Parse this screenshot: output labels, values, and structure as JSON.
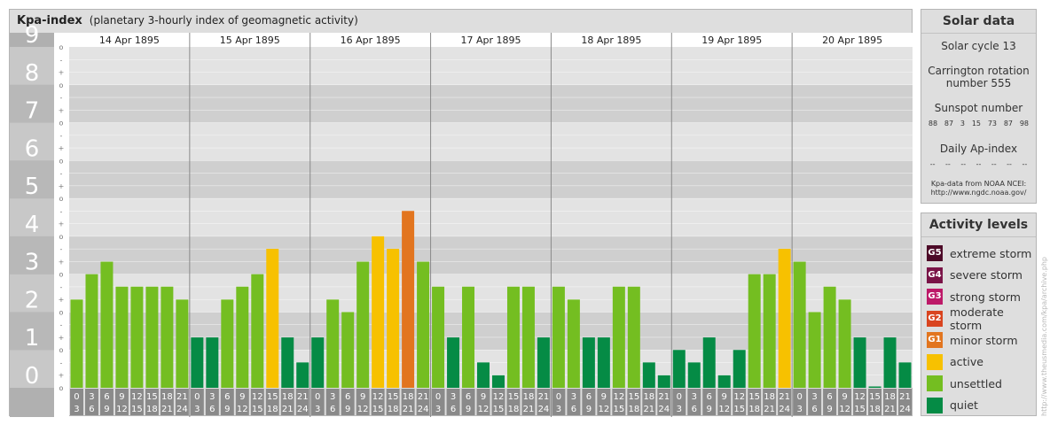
{
  "header": {
    "title": "Kpa-index",
    "subtitle": "(planetary 3-hourly index of geomagnetic activity)"
  },
  "chart_data": {
    "type": "bar",
    "title": "Kpa-index",
    "subtitle": "(planetary 3-hourly index of geomagnetic activity)",
    "ylim": [
      0,
      9
    ],
    "yticks": [
      "0",
      "1",
      "2",
      "3",
      "4",
      "5",
      "6",
      "7",
      "8",
      "9"
    ],
    "minor_tick_labels": [
      "o",
      "+",
      "-"
    ],
    "days": [
      "14 Apr 1895",
      "15 Apr 1895",
      "16 Apr 1895",
      "17 Apr 1895",
      "18 Apr 1895",
      "19 Apr 1895",
      "20 Apr 1895"
    ],
    "hour_start_labels": [
      "0",
      "3",
      "6",
      "9",
      "12",
      "15",
      "18",
      "21"
    ],
    "hour_end_labels": [
      "3",
      "6",
      "9",
      "12",
      "15",
      "18",
      "21",
      "24"
    ],
    "values": [
      [
        2.33,
        3.0,
        3.33,
        2.67,
        2.67,
        2.67,
        2.67,
        2.33
      ],
      [
        1.33,
        1.33,
        2.33,
        2.67,
        3.0,
        3.67,
        1.33,
        0.67
      ],
      [
        1.33,
        2.33,
        2.0,
        3.33,
        4.0,
        3.67,
        4.67,
        3.33
      ],
      [
        2.67,
        1.33,
        2.67,
        0.67,
        0.33,
        2.67,
        2.67,
        1.33
      ],
      [
        2.67,
        2.33,
        1.33,
        1.33,
        2.67,
        2.67,
        0.67,
        0.33
      ],
      [
        1.0,
        0.67,
        1.33,
        0.33,
        1.0,
        3.0,
        3.0,
        3.67
      ],
      [
        3.33,
        2.0,
        2.67,
        2.33,
        1.33,
        0.0,
        1.33,
        0.67
      ]
    ],
    "level_colors": {
      "quiet": "#058b45",
      "unsettled": "#74be21",
      "active": "#f7c100",
      "minor storm": "#e2751f"
    },
    "grid": true
  },
  "solar": {
    "title": "Solar data",
    "cycle": "Solar cycle 13",
    "carrington_1": "Carrington rotation",
    "carrington_2": "number 555",
    "sunspot_label": "Sunspot number",
    "sunspot_values": [
      "88",
      "87",
      "3",
      "15",
      "73",
      "87",
      "98"
    ],
    "ap_label": "Daily Ap-index",
    "ap_values": [
      "--",
      "--",
      "--",
      "--",
      "--",
      "--",
      "--"
    ],
    "source_1": "Kpa-data from NOAA NCEI:",
    "source_2": "http://www.ngdc.noaa.gov/"
  },
  "activity": {
    "title": "Activity levels",
    "items": [
      {
        "code": "G5",
        "label": "extreme storm",
        "color": "#4d0a28"
      },
      {
        "code": "G4",
        "label": "severe storm",
        "color": "#7a1347"
      },
      {
        "code": "G3",
        "label": "strong storm",
        "color": "#bd1968"
      },
      {
        "code": "G2",
        "label": "moderate storm",
        "color": "#d9441f"
      },
      {
        "code": "G1",
        "label": "minor storm",
        "color": "#e2751f"
      },
      {
        "code": "",
        "label": "active",
        "color": "#f7c100"
      },
      {
        "code": "",
        "label": "unsettled",
        "color": "#74be21"
      },
      {
        "code": "",
        "label": "quiet",
        "color": "#058b45"
      }
    ]
  },
  "credit": "http://www.theusmedia.com/kpa/archive.php"
}
